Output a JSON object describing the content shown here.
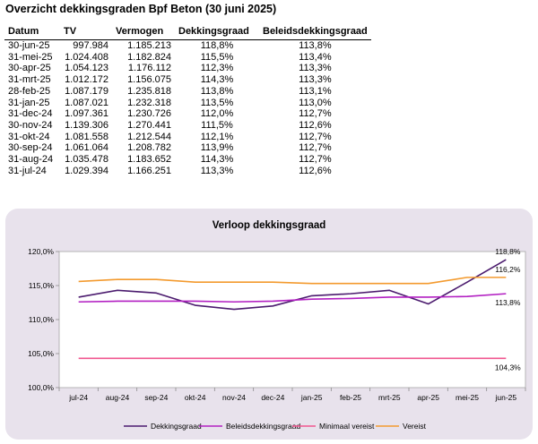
{
  "page_title": "Overzicht dekkingsgraden Bpf Beton (30 juni 2025)",
  "table": {
    "headers": [
      "Datum",
      "TV",
      "Vermogen",
      "Dekkingsgraad",
      "Beleidsdekkingsgraad"
    ],
    "rows": [
      [
        "30-jun-25",
        "997.984",
        "1.185.213",
        "118,8%",
        "113,8%"
      ],
      [
        "31-mei-25",
        "1.024.408",
        "1.182.824",
        "115,5%",
        "113,4%"
      ],
      [
        "30-apr-25",
        "1.054.123",
        "1.176.112",
        "112,3%",
        "113,3%"
      ],
      [
        "31-mrt-25",
        "1.012.172",
        "1.156.075",
        "114,3%",
        "113,3%"
      ],
      [
        "28-feb-25",
        "1.087.179",
        "1.235.818",
        "113,8%",
        "113,1%"
      ],
      [
        "31-jan-25",
        "1.087.021",
        "1.232.318",
        "113,5%",
        "113,0%"
      ],
      [
        "31-dec-24",
        "1.097.361",
        "1.230.726",
        "112,0%",
        "112,7%"
      ],
      [
        "30-nov-24",
        "1.139.306",
        "1.270.441",
        "111,5%",
        "112,6%"
      ],
      [
        "31-okt-24",
        "1.081.558",
        "1.212.544",
        "112,1%",
        "112,7%"
      ],
      [
        "30-sep-24",
        "1.061.064",
        "1.208.782",
        "113,9%",
        "112,7%"
      ],
      [
        "31-aug-24",
        "1.035.478",
        "1.183.652",
        "114,3%",
        "112,7%"
      ],
      [
        "31-jul-24",
        "1.029.394",
        "1.166.251",
        "113,3%",
        "112,6%"
      ]
    ]
  },
  "chart_data": {
    "type": "line",
    "title": "Verloop dekkingsgraad",
    "categories": [
      "jul-24",
      "aug-24",
      "sep-24",
      "okt-24",
      "nov-24",
      "dec-24",
      "jan-25",
      "feb-25",
      "mrt-25",
      "apr-25",
      "mei-25",
      "jun-25"
    ],
    "ylim": [
      100,
      120
    ],
    "yticks": [
      100,
      105,
      110,
      115,
      120
    ],
    "ytick_labels": [
      "100,0%",
      "105,0%",
      "110,0%",
      "115,0%",
      "120,0%"
    ],
    "grid": false,
    "legend_position": "bottom",
    "series": [
      {
        "name": "Dekkingsgraad",
        "color": "#4b1b6e",
        "values": [
          113.3,
          114.3,
          113.9,
          112.1,
          111.5,
          112.0,
          113.5,
          113.8,
          114.3,
          112.3,
          115.5,
          118.8
        ]
      },
      {
        "name": "Beleidsdekkingsgraad",
        "color": "#b21fc2",
        "values": [
          112.6,
          112.7,
          112.7,
          112.7,
          112.6,
          112.7,
          113.0,
          113.1,
          113.3,
          113.3,
          113.4,
          113.8
        ]
      },
      {
        "name": "Minimaal vereist",
        "color": "#f0568f",
        "values": [
          104.3,
          104.3,
          104.3,
          104.3,
          104.3,
          104.3,
          104.3,
          104.3,
          104.3,
          104.3,
          104.3,
          104.3
        ]
      },
      {
        "name": "Vereist",
        "color": "#f39a2e",
        "values": [
          115.6,
          115.9,
          115.9,
          115.5,
          115.5,
          115.5,
          115.3,
          115.3,
          115.3,
          115.3,
          116.2,
          116.2
        ]
      }
    ],
    "annotations": [
      {
        "series": 0,
        "text": "118,8%"
      },
      {
        "series": 3,
        "text": "116,2%"
      },
      {
        "series": 1,
        "text": "113,8%"
      },
      {
        "series": 2,
        "text": "104,3%"
      }
    ]
  }
}
